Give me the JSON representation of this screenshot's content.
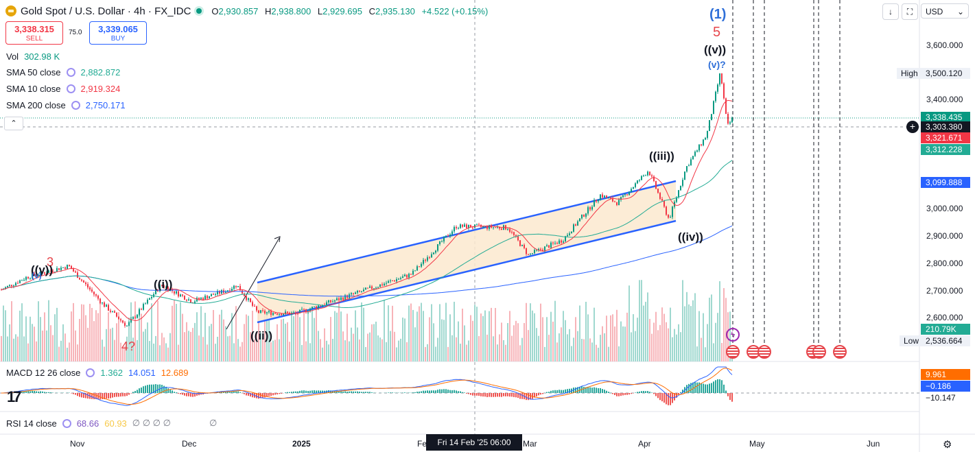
{
  "header": {
    "symbol": "Gold Spot / U.S. Dollar · 4h · FX_IDC",
    "open_label": "O",
    "open": "2,930.857",
    "high_label": "H",
    "high": "2,938.800",
    "low_label": "L",
    "low": "2,929.695",
    "close_label": "C",
    "close": "2,935.130",
    "change": "+4.522 (+0.15%)"
  },
  "trade": {
    "sell_price": "3,338.315",
    "sell_label": "SELL",
    "spread": "75.0",
    "buy_price": "3,339.065",
    "buy_label": "BUY"
  },
  "indicators": [
    {
      "name": "Vol",
      "value": "302.98 K",
      "color": "#089981"
    },
    {
      "name": "SMA 50 close",
      "value": "2,882.872",
      "color": "#22ab94"
    },
    {
      "name": "SMA 10 close",
      "value": "2,919.324",
      "color": "#f23645"
    },
    {
      "name": "SMA 200 close",
      "value": "2,750.171",
      "color": "#2962ff"
    }
  ],
  "currency": "USD",
  "price_axis": [
    "3,600.000",
    "3,400.000",
    "3,000.000",
    "2,900.000",
    "2,800.000",
    "2,700.000",
    "2,600.000"
  ],
  "price_tags": {
    "high_label": "High",
    "high_value": "3,500.120",
    "last": "3,338.435",
    "crosshair": "3,303.380",
    "sma10": "3,321.671",
    "sma50": "3,312.228",
    "sma200": "3,099.888",
    "volume": "210.79K",
    "low_label": "Low",
    "low_value": "2,536.664"
  },
  "macd": {
    "label": "MACD 12 26 close",
    "v1": "1.362",
    "v2": "14.051",
    "v3": "12.689",
    "tag1": "9.961",
    "tag2": "−0.186",
    "tag3": "−10.147"
  },
  "rsi": {
    "label": "RSI 14 close",
    "v1": "68.66",
    "v2": "60.93",
    "placeholders": "∅ ∅ ∅ ∅",
    "extra": "∅"
  },
  "time_axis": [
    "Nov",
    "Dec",
    "2025",
    "Fe",
    "Mar",
    "Apr",
    "May",
    "Jun"
  ],
  "crosshair_time": "Fri 14 Feb '25   06:00",
  "waves": {
    "w1": "(1)",
    "w5": "5",
    "wv_outer": "((v))",
    "wv_inner": "(v)?",
    "wiii": "((iii))",
    "wiv": "((iv))",
    "wii": "((ii))",
    "wi": "((i))",
    "w3": "3",
    "wy": "((y))",
    "wy_inner": "(v)",
    "w4": "4?"
  },
  "colors": {
    "up": "#089981",
    "down": "#f23645",
    "sma50": "#22ab94",
    "sma200": "#2962ff",
    "channel": "#2962ff"
  }
}
